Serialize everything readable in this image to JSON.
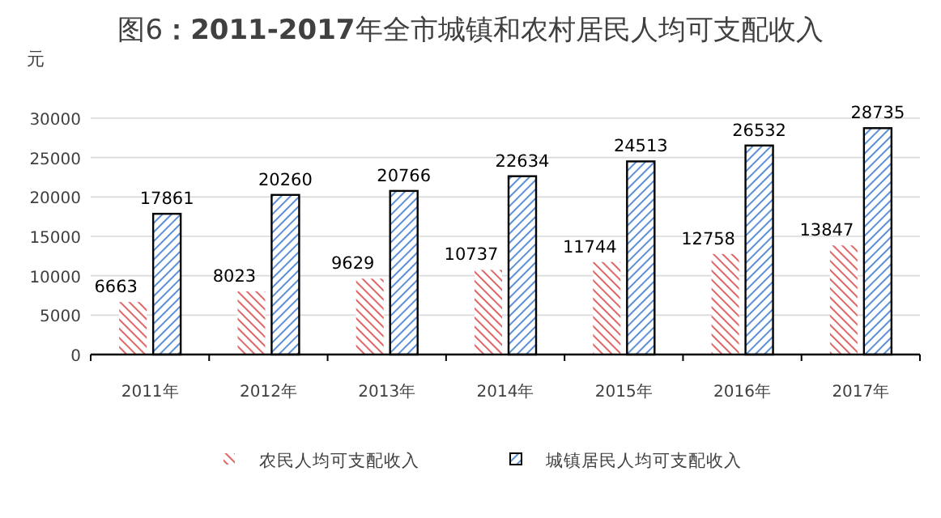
{
  "chart_data": {
    "type": "bar",
    "title": "图6**：2011-2017**年全市城镇和农村居民人均可支配收入",
    "ylabel": "元",
    "categories": [
      "2011年",
      "2012年",
      "2013年",
      "2014年",
      "2015年",
      "2016年",
      "2017年"
    ],
    "series": [
      {
        "name": "农民人均可支配收入",
        "color": "#e06666",
        "values": [
          6663,
          8023,
          9629,
          10737,
          11744,
          12758,
          13847
        ]
      },
      {
        "name": "城镇居民人均可支配收入",
        "color": "#5b8fd6",
        "values": [
          17861,
          20260,
          20766,
          22634,
          24513,
          26532,
          28735
        ]
      }
    ],
    "ylim": [
      0,
      30000
    ],
    "yticks": [
      0,
      5000,
      10000,
      15000,
      20000,
      25000,
      30000
    ],
    "grid": "y",
    "legend": "bottom",
    "data_labels": true
  }
}
